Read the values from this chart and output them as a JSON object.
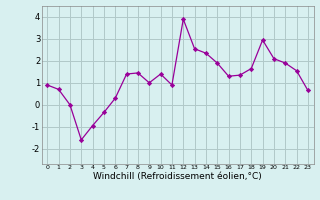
{
  "x": [
    0,
    1,
    2,
    3,
    4,
    5,
    6,
    7,
    8,
    9,
    10,
    11,
    12,
    13,
    14,
    15,
    16,
    17,
    18,
    19,
    20,
    21,
    22,
    23
  ],
  "y": [
    0.9,
    0.7,
    0.0,
    -1.6,
    -0.95,
    -0.35,
    0.3,
    1.4,
    1.45,
    1.0,
    1.4,
    0.9,
    3.9,
    2.55,
    2.35,
    1.9,
    1.3,
    1.35,
    1.65,
    2.95,
    2.1,
    1.9,
    1.55,
    0.65
  ],
  "line_color": "#990099",
  "marker": "D",
  "markersize": 2.2,
  "linewidth": 0.9,
  "xlabel": "Windchill (Refroidissement éolien,°C)",
  "xlabel_fontsize": 6.5,
  "bg_color": "#d8f0f0",
  "grid_color": "#b0c8c8",
  "yticks": [
    -2,
    -1,
    0,
    1,
    2,
    3,
    4
  ],
  "xticks": [
    0,
    1,
    2,
    3,
    4,
    5,
    6,
    7,
    8,
    9,
    10,
    11,
    12,
    13,
    14,
    15,
    16,
    17,
    18,
    19,
    20,
    21,
    22,
    23
  ],
  "ylim": [
    -2.7,
    4.5
  ],
  "xlim": [
    -0.5,
    23.5
  ],
  "ytick_fontsize": 6.0,
  "xtick_fontsize": 4.5
}
